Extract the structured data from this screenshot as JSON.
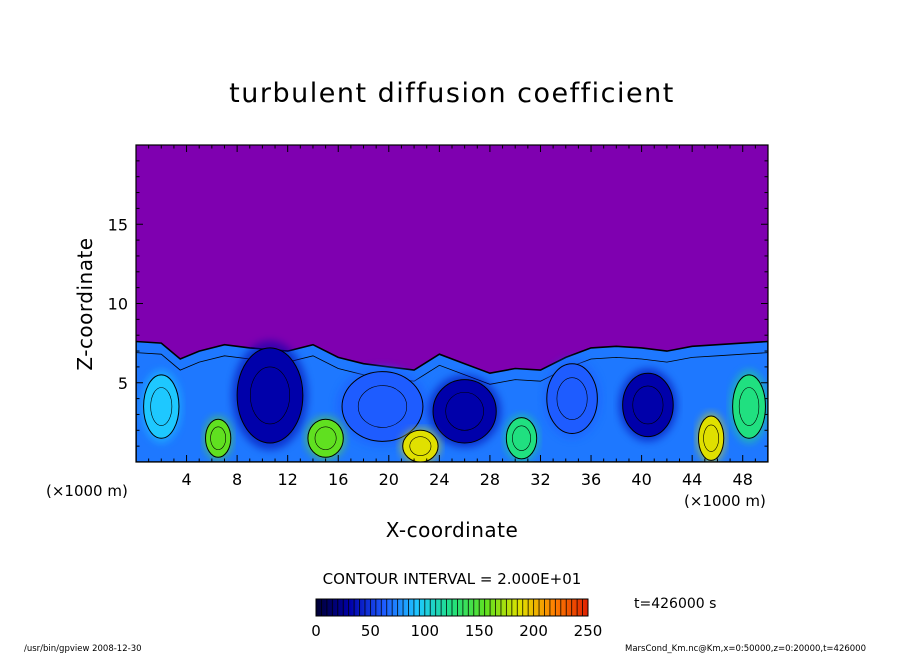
{
  "chart_data": {
    "type": "heatmap",
    "title": "turbulent diffusion coefficient",
    "xlabel": "X-coordinate",
    "ylabel": "Z-coordinate",
    "x_unit": "(×1000 m)",
    "y_unit": "(×1000 m)",
    "xlim": [
      0,
      50
    ],
    "ylim": [
      0,
      20
    ],
    "x_ticks": [
      4,
      8,
      12,
      16,
      20,
      24,
      28,
      32,
      36,
      40,
      44,
      48
    ],
    "y_ticks": [
      5,
      10,
      15
    ],
    "colorbar": {
      "min": 0,
      "max": 250,
      "ticks": [
        0,
        50,
        100,
        150,
        200,
        250
      ]
    },
    "contour_interval": "CONTOUR INTERVAL = 2.000E+01",
    "time_label": "t=426000 s",
    "background_value": 0,
    "boundary_layer_top_approx": [
      [
        0,
        7.6
      ],
      [
        2,
        7.5
      ],
      [
        3.5,
        6.5
      ],
      [
        5,
        7.0
      ],
      [
        7,
        7.4
      ],
      [
        9,
        7.2
      ],
      [
        12,
        7.0
      ],
      [
        14,
        7.4
      ],
      [
        16,
        6.6
      ],
      [
        18,
        6.2
      ],
      [
        20,
        6.0
      ],
      [
        22,
        5.8
      ],
      [
        24,
        6.8
      ],
      [
        26,
        6.2
      ],
      [
        28,
        5.6
      ],
      [
        30,
        5.9
      ],
      [
        32,
        5.8
      ],
      [
        34,
        6.6
      ],
      [
        36,
        7.2
      ],
      [
        38,
        7.3
      ],
      [
        40,
        7.2
      ],
      [
        42,
        7.0
      ],
      [
        44,
        7.3
      ],
      [
        46,
        7.4
      ],
      [
        48,
        7.5
      ],
      [
        50,
        7.6
      ]
    ],
    "features": [
      {
        "x": 10.6,
        "z": 4.2,
        "rx": 2.6,
        "rz": 3.0,
        "value": 20
      },
      {
        "x": 19.5,
        "z": 3.5,
        "rx": 3.2,
        "rz": 2.2,
        "value": 60
      },
      {
        "x": 26.0,
        "z": 3.2,
        "rx": 2.5,
        "rz": 2.0,
        "value": 40
      },
      {
        "x": 34.5,
        "z": 4.0,
        "rx": 2.0,
        "rz": 2.2,
        "value": 60
      },
      {
        "x": 40.5,
        "z": 3.6,
        "rx": 2.0,
        "rz": 2.0,
        "value": 30
      },
      {
        "x": 2.0,
        "z": 3.5,
        "rx": 1.4,
        "rz": 2.0,
        "value": 80
      },
      {
        "x": 48.5,
        "z": 3.5,
        "rx": 1.3,
        "rz": 2.0,
        "value": 120
      },
      {
        "x": 6.5,
        "z": 1.5,
        "rx": 1.0,
        "rz": 1.2,
        "value": 160
      },
      {
        "x": 15.0,
        "z": 1.5,
        "rx": 1.4,
        "rz": 1.2,
        "value": 150
      },
      {
        "x": 22.5,
        "z": 1.0,
        "rx": 1.4,
        "rz": 1.0,
        "value": 180
      },
      {
        "x": 30.5,
        "z": 1.5,
        "rx": 1.2,
        "rz": 1.3,
        "value": 140
      },
      {
        "x": 45.5,
        "z": 1.5,
        "rx": 1.0,
        "rz": 1.4,
        "value": 200
      }
    ]
  },
  "footer": {
    "left": "/usr/bin/gpview   2008-12-30",
    "right": "MarsCond_Km.nc@Km,x=0:50000,z=0:20000,t=426000"
  },
  "colors": {
    "background": "#7f00b0",
    "colormap": [
      "#000033",
      "#0000aa",
      "#1e5cff",
      "#1ec8ff",
      "#20e080",
      "#60e020",
      "#e0e000",
      "#ff8000",
      "#e02000"
    ]
  }
}
